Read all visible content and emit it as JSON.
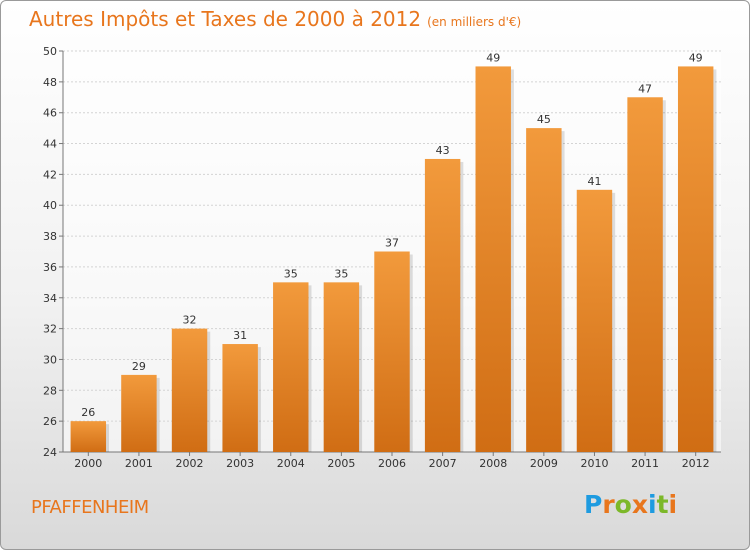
{
  "chart_data": {
    "type": "bar",
    "title": "Autres Impôts et Taxes de 2000 à 2012",
    "subtitle": "(en milliers d'€)",
    "xlabel": "",
    "ylabel": "",
    "categories": [
      "2000",
      "2001",
      "2002",
      "2003",
      "2004",
      "2005",
      "2006",
      "2007",
      "2008",
      "2009",
      "2010",
      "2011",
      "2012"
    ],
    "values": [
      26,
      29,
      32,
      31,
      35,
      35,
      37,
      43,
      49,
      45,
      41,
      47,
      49
    ],
    "ylim": [
      24,
      50
    ],
    "yticks": [
      24,
      26,
      28,
      30,
      32,
      34,
      36,
      38,
      40,
      42,
      44,
      46,
      48,
      50
    ],
    "grid": true,
    "bar_color": "#f29a3c",
    "bar_color_dark": "#d06d14"
  },
  "footer": {
    "commune": "PFAFFENHEIM",
    "logo_letters": [
      {
        "char": "P",
        "color": "#1e9be0"
      },
      {
        "char": "r",
        "color": "#e8761d"
      },
      {
        "char": "o",
        "color": "#7cb829"
      },
      {
        "char": "x",
        "color": "#e8761d"
      },
      {
        "char": "i",
        "color": "#1e9be0"
      },
      {
        "char": "t",
        "color": "#7cb829"
      },
      {
        "char": "i",
        "color": "#e8761d"
      }
    ]
  }
}
